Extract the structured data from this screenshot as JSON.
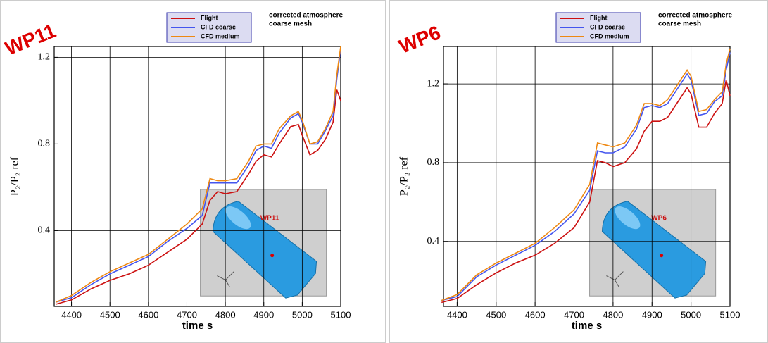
{
  "chart_data": [
    {
      "type": "line",
      "title": "WP11",
      "annotations": [
        "corrected atmosphere",
        "coarse mesh"
      ],
      "inset_label": "WP11",
      "x_label": "time s",
      "y_label": "P₂/P₂ ref",
      "x": [
        4360,
        4400,
        4450,
        4500,
        4550,
        4600,
        4650,
        4700,
        4740,
        4760,
        4780,
        4800,
        4830,
        4860,
        4880,
        4900,
        4920,
        4940,
        4970,
        4990,
        5000,
        5020,
        5040,
        5060,
        5080,
        5090,
        5100
      ],
      "series": [
        {
          "name": "Flight",
          "color": "#cc1111",
          "values": [
            0.06,
            0.08,
            0.13,
            0.17,
            0.2,
            0.24,
            0.3,
            0.36,
            0.43,
            0.54,
            0.58,
            0.57,
            0.58,
            0.66,
            0.72,
            0.75,
            0.74,
            0.8,
            0.88,
            0.89,
            0.84,
            0.75,
            0.77,
            0.82,
            0.9,
            1.05,
            1.0
          ]
        },
        {
          "name": "CFD coarse",
          "color": "#4455ee",
          "values": [
            0.07,
            0.09,
            0.15,
            0.2,
            0.24,
            0.28,
            0.35,
            0.41,
            0.47,
            0.62,
            0.62,
            0.62,
            0.62,
            0.7,
            0.77,
            0.79,
            0.78,
            0.85,
            0.92,
            0.94,
            0.9,
            0.8,
            0.8,
            0.86,
            0.93,
            1.1,
            1.24
          ]
        },
        {
          "name": "CFD medium",
          "color": "#ee8811",
          "values": [
            0.07,
            0.1,
            0.16,
            0.21,
            0.25,
            0.29,
            0.36,
            0.43,
            0.5,
            0.64,
            0.63,
            0.63,
            0.64,
            0.72,
            0.79,
            0.8,
            0.8,
            0.87,
            0.93,
            0.95,
            0.91,
            0.8,
            0.81,
            0.87,
            0.95,
            1.12,
            1.25
          ]
        }
      ],
      "xlim": [
        4355,
        5100
      ],
      "xticks": [
        4400,
        4500,
        4600,
        4700,
        4800,
        4900,
        5000,
        5100
      ],
      "ylim": [
        0.05,
        1.25
      ],
      "yticks": [
        0.4,
        0.8,
        1.2
      ],
      "grid": true
    },
    {
      "type": "line",
      "title": "WP6",
      "annotations": [
        "corrected atmosphere",
        "coarse mesh"
      ],
      "inset_label": "WP6",
      "x_label": "time s",
      "y_label": "P₂/P₂ ref",
      "x": [
        4360,
        4400,
        4450,
        4500,
        4550,
        4600,
        4650,
        4700,
        4740,
        4760,
        4780,
        4800,
        4830,
        4860,
        4880,
        4900,
        4920,
        4940,
        4970,
        4990,
        5000,
        5020,
        5040,
        5060,
        5080,
        5090,
        5100
      ],
      "series": [
        {
          "name": "Flight",
          "color": "#cc1111",
          "values": [
            0.09,
            0.11,
            0.18,
            0.24,
            0.29,
            0.33,
            0.39,
            0.47,
            0.6,
            0.81,
            0.8,
            0.78,
            0.8,
            0.87,
            0.96,
            1.01,
            1.01,
            1.03,
            1.12,
            1.18,
            1.15,
            0.98,
            0.98,
            1.05,
            1.1,
            1.22,
            1.14
          ]
        },
        {
          "name": "CFD coarse",
          "color": "#4455ee",
          "values": [
            0.1,
            0.12,
            0.22,
            0.28,
            0.33,
            0.38,
            0.45,
            0.54,
            0.66,
            0.86,
            0.85,
            0.85,
            0.88,
            0.97,
            1.08,
            1.09,
            1.08,
            1.1,
            1.19,
            1.25,
            1.22,
            1.04,
            1.05,
            1.11,
            1.14,
            1.27,
            1.36
          ]
        },
        {
          "name": "CFD medium",
          "color": "#ee8811",
          "values": [
            0.1,
            0.13,
            0.23,
            0.29,
            0.34,
            0.39,
            0.47,
            0.56,
            0.69,
            0.9,
            0.89,
            0.88,
            0.9,
            0.99,
            1.1,
            1.1,
            1.09,
            1.12,
            1.21,
            1.27,
            1.24,
            1.06,
            1.07,
            1.12,
            1.16,
            1.3,
            1.38
          ]
        }
      ],
      "xlim": [
        4365,
        5100
      ],
      "xticks": [
        4400,
        4500,
        4600,
        4700,
        4800,
        4900,
        5000,
        5100
      ],
      "ylim": [
        0.07,
        1.39
      ],
      "yticks": [
        0.4,
        0.8,
        1.2
      ],
      "grid": true
    }
  ]
}
